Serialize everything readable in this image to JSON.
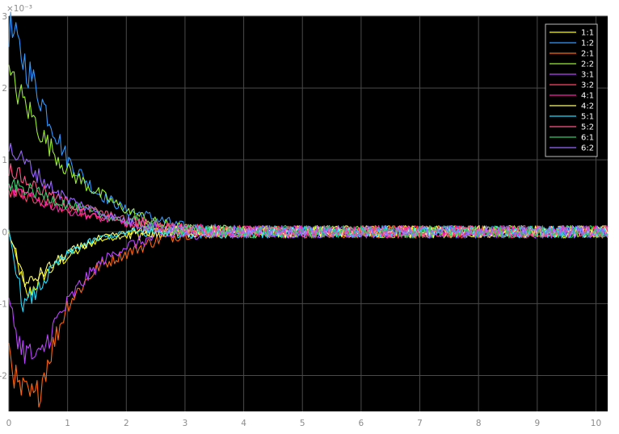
{
  "chart_data": {
    "type": "line",
    "title": "",
    "xlabel": "",
    "ylabel": "",
    "y_exponent_label": "×10⁻³",
    "xlim": [
      0,
      10.2
    ],
    "ylim": [
      -2.5,
      3.0
    ],
    "y_scale": 0.001,
    "xticks": [
      "0",
      "1",
      "2",
      "3",
      "4",
      "5",
      "6",
      "7",
      "8",
      "9",
      "10"
    ],
    "yticks": [
      "-2",
      "-1",
      "0",
      "1",
      "2",
      "3"
    ],
    "grid": true,
    "legend_position": "top-right",
    "background_color": "#000000",
    "grid_color": "#4a4a4a",
    "series": [
      {
        "name": "1:1",
        "color": "#ffff00",
        "x": [
          0,
          0.3,
          0.6,
          1.0,
          1.5,
          2.0,
          2.5,
          3.0,
          4.0,
          5.0,
          6.0,
          7.0,
          8.0,
          9.0,
          10.2
        ],
        "values": [
          0.0,
          -0.9,
          -0.6,
          -0.35,
          -0.12,
          -0.04,
          -0.02,
          0.0,
          0.0,
          0.0,
          0.0,
          0.0,
          0.0,
          0.0,
          0.0
        ]
      },
      {
        "name": "1:2",
        "color": "#3399ff",
        "x": [
          0,
          0.3,
          0.6,
          1.0,
          1.5,
          2.0,
          2.5,
          3.0,
          4.0,
          5.0,
          6.0,
          7.0,
          8.0,
          9.0,
          10.2
        ],
        "values": [
          2.85,
          2.3,
          1.75,
          1.0,
          0.55,
          0.3,
          0.18,
          0.05,
          0.0,
          0.0,
          0.0,
          0.0,
          0.0,
          0.0,
          0.0
        ]
      },
      {
        "name": "2:1",
        "color": "#ff6611",
        "x": [
          0,
          0.15,
          0.45,
          0.7,
          1.0,
          1.5,
          2.0,
          2.5,
          3.0,
          4.0,
          5.0,
          6.0,
          7.0,
          8.0,
          9.0,
          10.2
        ],
        "values": [
          -1.6,
          -2.2,
          -2.35,
          -1.7,
          -1.0,
          -0.5,
          -0.3,
          -0.12,
          -0.02,
          0.0,
          0.0,
          0.0,
          0.0,
          0.0,
          0.0,
          0.0
        ]
      },
      {
        "name": "2:2",
        "color": "#99ee33",
        "x": [
          0,
          0.3,
          0.6,
          1.0,
          1.5,
          2.0,
          2.5,
          3.0,
          4.0,
          5.0,
          6.0,
          7.0,
          8.0,
          9.0,
          10.2
        ],
        "values": [
          2.15,
          1.75,
          1.3,
          0.85,
          0.55,
          0.3,
          0.12,
          0.03,
          0.0,
          0.0,
          0.0,
          0.0,
          0.0,
          0.0,
          0.0
        ]
      },
      {
        "name": "3:1",
        "color": "#bb44ff",
        "x": [
          0,
          0.2,
          0.5,
          0.8,
          1.2,
          1.6,
          2.0,
          2.5,
          3.0,
          4.0,
          5.0,
          6.0,
          7.0,
          8.0,
          9.0,
          10.2
        ],
        "values": [
          -1.0,
          -1.6,
          -1.8,
          -1.25,
          -0.75,
          -0.4,
          -0.2,
          -0.08,
          -0.02,
          0.0,
          0.0,
          0.0,
          0.0,
          0.0,
          0.0,
          0.0
        ]
      },
      {
        "name": "3:2",
        "color": "#ff4466",
        "x": [
          0,
          0.3,
          0.6,
          1.0,
          1.5,
          2.0,
          2.5,
          3.0,
          4.0,
          5.0,
          6.0,
          7.0,
          8.0,
          9.0,
          10.2
        ],
        "values": [
          0.55,
          0.5,
          0.42,
          0.32,
          0.22,
          0.14,
          0.07,
          0.02,
          0.0,
          0.0,
          0.0,
          0.0,
          0.0,
          0.0,
          0.0
        ]
      },
      {
        "name": "4:1",
        "color": "#ff22aa",
        "x": [
          0,
          0.3,
          0.6,
          1.0,
          1.5,
          2.0,
          2.5,
          3.0,
          4.0,
          5.0,
          6.0,
          7.0,
          8.0,
          9.0,
          10.2
        ],
        "values": [
          0.6,
          0.5,
          0.4,
          0.3,
          0.2,
          0.12,
          0.06,
          0.02,
          0.0,
          0.0,
          0.0,
          0.0,
          0.0,
          0.0,
          0.0
        ]
      },
      {
        "name": "4:2",
        "color": "#ffff66",
        "x": [
          0,
          0.3,
          0.6,
          1.0,
          1.5,
          2.0,
          2.5,
          3.0,
          4.0,
          5.0,
          6.0,
          7.0,
          8.0,
          9.0,
          10.2
        ],
        "values": [
          0.0,
          -0.75,
          -0.55,
          -0.3,
          -0.1,
          -0.02,
          0.0,
          0.0,
          0.0,
          0.0,
          0.0,
          0.0,
          0.0,
          0.0,
          0.0
        ]
      },
      {
        "name": "5:1",
        "color": "#22ddff",
        "x": [
          0,
          0.25,
          0.5,
          0.8,
          1.2,
          1.6,
          2.0,
          2.5,
          3.0,
          4.0,
          5.0,
          6.0,
          7.0,
          8.0,
          9.0,
          10.2
        ],
        "values": [
          0.0,
          -1.05,
          -0.8,
          -0.45,
          -0.2,
          -0.08,
          -0.02,
          0.0,
          0.0,
          0.0,
          0.0,
          0.0,
          0.0,
          0.0,
          0.0,
          0.0
        ]
      },
      {
        "name": "5:2",
        "color": "#ff5588",
        "x": [
          0,
          0.3,
          0.6,
          1.0,
          1.5,
          2.0,
          2.5,
          3.0,
          4.0,
          5.0,
          6.0,
          7.0,
          8.0,
          9.0,
          10.2
        ],
        "values": [
          0.9,
          0.7,
          0.55,
          0.4,
          0.28,
          0.16,
          0.08,
          0.03,
          0.0,
          0.0,
          0.0,
          0.0,
          0.0,
          0.0,
          0.0
        ]
      },
      {
        "name": "6:1",
        "color": "#33cc66",
        "x": [
          0,
          0.3,
          0.6,
          1.0,
          1.5,
          2.0,
          2.5,
          3.0,
          4.0,
          5.0,
          6.0,
          7.0,
          8.0,
          9.0,
          10.2
        ],
        "values": [
          0.65,
          0.6,
          0.5,
          0.38,
          0.25,
          0.15,
          0.07,
          0.02,
          0.0,
          0.0,
          0.0,
          0.0,
          0.0,
          0.0,
          0.0
        ]
      },
      {
        "name": "6:2",
        "color": "#9966ff",
        "x": [
          0,
          0.3,
          0.6,
          1.0,
          1.5,
          2.0,
          2.5,
          3.0,
          4.0,
          5.0,
          6.0,
          7.0,
          8.0,
          9.0,
          10.2
        ],
        "values": [
          1.15,
          0.95,
          0.7,
          0.45,
          0.28,
          0.15,
          0.07,
          0.02,
          0.0,
          0.0,
          0.0,
          0.0,
          0.0,
          0.0,
          0.0
        ]
      }
    ]
  }
}
